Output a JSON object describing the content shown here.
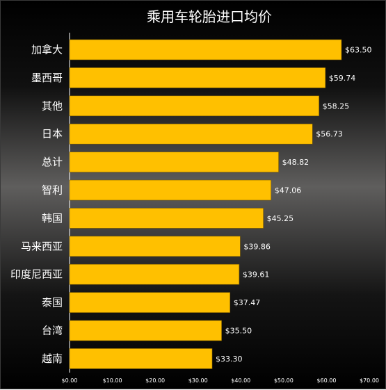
{
  "chart_data": {
    "type": "bar",
    "orientation": "horizontal",
    "title": "乘用车轮胎进口均价",
    "categories": [
      "加拿大",
      "墨西哥",
      "其他",
      "日本",
      "总计",
      "智利",
      "韩国",
      "马来西亚",
      "印度尼西亚",
      "泰国",
      "台湾",
      "越南"
    ],
    "values": [
      63.5,
      59.74,
      58.25,
      56.73,
      48.82,
      47.06,
      45.25,
      39.86,
      39.61,
      37.47,
      35.5,
      33.3
    ],
    "value_labels": [
      "$63.50",
      "$59.74",
      "$58.25",
      "$56.73",
      "$48.82",
      "$47.06",
      "$45.25",
      "$39.86",
      "$39.61",
      "$37.47",
      "$35.50",
      "$33.30"
    ],
    "xlim": [
      0,
      70
    ],
    "xticks": [
      0,
      10,
      20,
      30,
      40,
      50,
      60,
      70
    ],
    "xtick_labels": [
      "$0.00",
      "$10.00",
      "$20.00",
      "$30.00",
      "$40.00",
      "$50.00",
      "$60.00",
      "$70.00"
    ],
    "xlabel": "",
    "ylabel": "",
    "grid": false,
    "legend": "none",
    "bar_color": "#FFC000",
    "bar_outline_color": "#7a5a00",
    "text_color": "#FFFFFF",
    "background_colors": [
      "#000000",
      "#5f5e5d",
      "#000000"
    ]
  }
}
